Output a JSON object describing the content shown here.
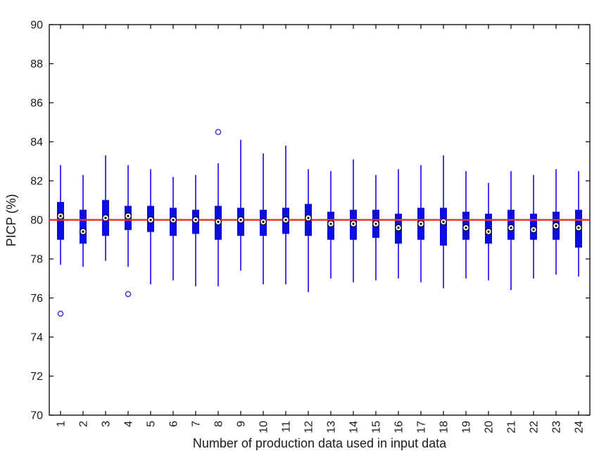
{
  "chart_data": {
    "type": "boxplot",
    "title": "",
    "xlabel": "Number of production data used in input data",
    "ylabel": "PICP (%)",
    "ylim": [
      70,
      90
    ],
    "ytick_step": 2,
    "ytick_labels": [
      "70",
      "72",
      "74",
      "76",
      "78",
      "80",
      "82",
      "84",
      "86",
      "88",
      "90"
    ],
    "categories": [
      "1",
      "2",
      "3",
      "4",
      "5",
      "6",
      "7",
      "8",
      "9",
      "10",
      "11",
      "12",
      "13",
      "14",
      "15",
      "16",
      "17",
      "18",
      "19",
      "20",
      "21",
      "22",
      "23",
      "24"
    ],
    "legend": "none",
    "grid": false,
    "reference_line": {
      "y": 80,
      "color": "#ff2a2a"
    },
    "style": {
      "box_color": "#0c0cdf",
      "whisker_color": "#1a1ae8",
      "outlier_color": "#2222e0",
      "median_fill": "#ffffff",
      "median_stroke": "#000000",
      "median_dot": "#000000",
      "frame_color": "#000000"
    },
    "series": [
      {
        "label": "1",
        "whisker_low": 77.7,
        "q1": 79.0,
        "median": 80.2,
        "q3": 80.9,
        "whisker_high": 82.8,
        "outliers": [
          75.2
        ]
      },
      {
        "label": "2",
        "whisker_low": 77.6,
        "q1": 78.8,
        "median": 79.4,
        "q3": 80.5,
        "whisker_high": 82.3,
        "outliers": []
      },
      {
        "label": "3",
        "whisker_low": 77.9,
        "q1": 79.2,
        "median": 80.1,
        "q3": 81.0,
        "whisker_high": 83.3,
        "outliers": []
      },
      {
        "label": "4",
        "whisker_low": 77.6,
        "q1": 79.5,
        "median": 80.2,
        "q3": 80.7,
        "whisker_high": 82.8,
        "outliers": [
          76.2
        ]
      },
      {
        "label": "5",
        "whisker_low": 76.7,
        "q1": 79.4,
        "median": 80.0,
        "q3": 80.7,
        "whisker_high": 82.6,
        "outliers": []
      },
      {
        "label": "6",
        "whisker_low": 76.9,
        "q1": 79.2,
        "median": 80.0,
        "q3": 80.6,
        "whisker_high": 82.2,
        "outliers": []
      },
      {
        "label": "7",
        "whisker_low": 76.6,
        "q1": 79.3,
        "median": 80.0,
        "q3": 80.5,
        "whisker_high": 82.3,
        "outliers": []
      },
      {
        "label": "8",
        "whisker_low": 76.6,
        "q1": 79.0,
        "median": 79.9,
        "q3": 80.7,
        "whisker_high": 82.9,
        "outliers": [
          84.5
        ]
      },
      {
        "label": "9",
        "whisker_low": 77.4,
        "q1": 79.2,
        "median": 80.0,
        "q3": 80.6,
        "whisker_high": 84.1,
        "outliers": []
      },
      {
        "label": "10",
        "whisker_low": 76.7,
        "q1": 79.2,
        "median": 79.9,
        "q3": 80.5,
        "whisker_high": 83.4,
        "outliers": []
      },
      {
        "label": "11",
        "whisker_low": 76.7,
        "q1": 79.3,
        "median": 80.0,
        "q3": 80.6,
        "whisker_high": 83.8,
        "outliers": []
      },
      {
        "label": "12",
        "whisker_low": 76.3,
        "q1": 79.2,
        "median": 80.1,
        "q3": 80.8,
        "whisker_high": 82.6,
        "outliers": []
      },
      {
        "label": "13",
        "whisker_low": 77.0,
        "q1": 79.0,
        "median": 79.8,
        "q3": 80.4,
        "whisker_high": 82.5,
        "outliers": []
      },
      {
        "label": "14",
        "whisker_low": 76.8,
        "q1": 79.0,
        "median": 79.8,
        "q3": 80.5,
        "whisker_high": 83.1,
        "outliers": []
      },
      {
        "label": "15",
        "whisker_low": 76.9,
        "q1": 79.1,
        "median": 79.8,
        "q3": 80.5,
        "whisker_high": 82.3,
        "outliers": []
      },
      {
        "label": "16",
        "whisker_low": 77.0,
        "q1": 78.8,
        "median": 79.6,
        "q3": 80.3,
        "whisker_high": 82.6,
        "outliers": []
      },
      {
        "label": "17",
        "whisker_low": 76.8,
        "q1": 79.0,
        "median": 79.8,
        "q3": 80.6,
        "whisker_high": 82.8,
        "outliers": []
      },
      {
        "label": "18",
        "whisker_low": 76.5,
        "q1": 78.7,
        "median": 79.9,
        "q3": 80.6,
        "whisker_high": 83.3,
        "outliers": []
      },
      {
        "label": "19",
        "whisker_low": 77.0,
        "q1": 79.0,
        "median": 79.6,
        "q3": 80.4,
        "whisker_high": 82.5,
        "outliers": []
      },
      {
        "label": "20",
        "whisker_low": 76.9,
        "q1": 78.8,
        "median": 79.4,
        "q3": 80.3,
        "whisker_high": 81.9,
        "outliers": []
      },
      {
        "label": "21",
        "whisker_low": 76.4,
        "q1": 79.0,
        "median": 79.6,
        "q3": 80.5,
        "whisker_high": 82.5,
        "outliers": []
      },
      {
        "label": "22",
        "whisker_low": 77.0,
        "q1": 79.0,
        "median": 79.5,
        "q3": 80.3,
        "whisker_high": 82.3,
        "outliers": []
      },
      {
        "label": "23",
        "whisker_low": 77.2,
        "q1": 79.0,
        "median": 79.7,
        "q3": 80.4,
        "whisker_high": 82.6,
        "outliers": []
      },
      {
        "label": "24",
        "whisker_low": 77.1,
        "q1": 78.6,
        "median": 79.6,
        "q3": 80.5,
        "whisker_high": 82.5,
        "outliers": []
      }
    ]
  }
}
